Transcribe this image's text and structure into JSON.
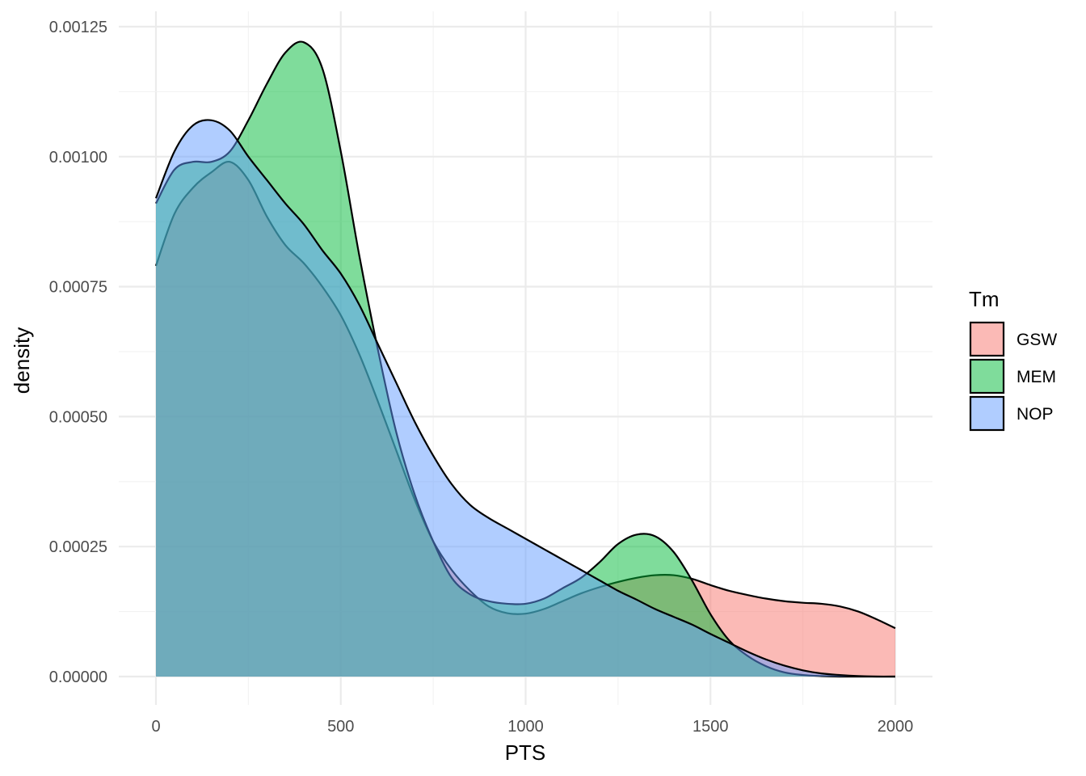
{
  "chart_data": {
    "type": "area",
    "xlabel": "PTS",
    "ylabel": "density",
    "xlim": [
      0,
      2000
    ],
    "ylim": [
      0,
      0.00125
    ],
    "x_ticks": [
      0,
      500,
      1000,
      1500,
      2000
    ],
    "x_tick_labels": [
      "0",
      "500",
      "1000",
      "1500",
      "2000"
    ],
    "y_ticks": [
      0,
      0.00025,
      0.0005,
      0.00075,
      0.001,
      0.00125
    ],
    "y_tick_labels": [
      "0.00000",
      "0.00025",
      "0.00050",
      "0.00075",
      "0.00100",
      "0.00125"
    ],
    "grid": true,
    "legend": {
      "title": "Tm",
      "position": "right"
    },
    "series": [
      {
        "name": "GSW",
        "color": "#F8766D",
        "x": [
          0,
          50,
          100,
          150,
          200,
          250,
          300,
          350,
          400,
          450,
          500,
          550,
          600,
          650,
          700,
          750,
          800,
          850,
          900,
          950,
          1000,
          1050,
          1100,
          1150,
          1200,
          1250,
          1300,
          1350,
          1400,
          1450,
          1500,
          1550,
          1600,
          1650,
          1700,
          1750,
          1800,
          1850,
          1900,
          1950,
          2000
        ],
        "values": [
          0.00079,
          0.00089,
          0.00094,
          0.00097,
          0.00099,
          0.000955,
          0.000885,
          0.00083,
          0.000795,
          0.00075,
          0.000695,
          0.00062,
          0.00053,
          0.000435,
          0.00034,
          0.00026,
          0.000205,
          0.000165,
          0.000135,
          0.000122,
          0.000121,
          0.00013,
          0.000145,
          0.00016,
          0.000172,
          0.000182,
          0.00019,
          0.000195,
          0.000195,
          0.000188,
          0.000176,
          0.000165,
          0.000157,
          0.00015,
          0.000145,
          0.000142,
          0.00014,
          0.000135,
          0.000125,
          0.00011,
          9.3e-05
        ]
      },
      {
        "name": "MEM",
        "color": "#00BA38",
        "x": [
          0,
          50,
          100,
          150,
          200,
          250,
          300,
          350,
          400,
          450,
          500,
          550,
          600,
          650,
          700,
          750,
          800,
          850,
          900,
          950,
          1000,
          1050,
          1100,
          1150,
          1200,
          1250,
          1300,
          1350,
          1400,
          1450,
          1500,
          1550,
          1600,
          1650,
          1700,
          1750,
          1800,
          1850,
          1900,
          1950,
          2000
        ],
        "values": [
          0.00091,
          0.000975,
          0.00099,
          0.00099,
          0.00101,
          0.00107,
          0.00114,
          0.0012,
          0.00122,
          0.00117,
          0.00101,
          0.00081,
          0.00063,
          0.00047,
          0.00035,
          0.00026,
          0.00019,
          0.000158,
          0.000145,
          0.00014,
          0.00014,
          0.00015,
          0.00017,
          0.00019,
          0.00022,
          0.000255,
          0.000273,
          0.00027,
          0.00024,
          0.000185,
          0.00012,
          7e-05,
          4e-05,
          2e-05,
          8e-06,
          3e-06,
          1e-06,
          0,
          0,
          0,
          0
        ]
      },
      {
        "name": "NOP",
        "color": "#619CFF",
        "x": [
          0,
          50,
          100,
          150,
          200,
          250,
          300,
          350,
          400,
          450,
          500,
          550,
          600,
          650,
          700,
          750,
          800,
          850,
          900,
          950,
          1000,
          1050,
          1100,
          1150,
          1200,
          1250,
          1300,
          1350,
          1400,
          1450,
          1500,
          1550,
          1600,
          1650,
          1700,
          1750,
          1800,
          1850,
          1900,
          1950,
          2000
        ],
        "values": [
          0.00092,
          0.00101,
          0.00106,
          0.00107,
          0.00105,
          0.001,
          0.000955,
          0.00091,
          0.00087,
          0.00082,
          0.000775,
          0.000715,
          0.00064,
          0.000565,
          0.00049,
          0.000425,
          0.00037,
          0.00033,
          0.000305,
          0.000285,
          0.000265,
          0.000245,
          0.000225,
          0.000205,
          0.000185,
          0.000165,
          0.000148,
          0.00013,
          0.000115,
          0.0001,
          8.2e-05,
          6.5e-05,
          4.8e-05,
          3.3e-05,
          2.1e-05,
          1.2e-05,
          6e-06,
          3e-06,
          1e-06,
          0,
          0
        ]
      }
    ]
  }
}
